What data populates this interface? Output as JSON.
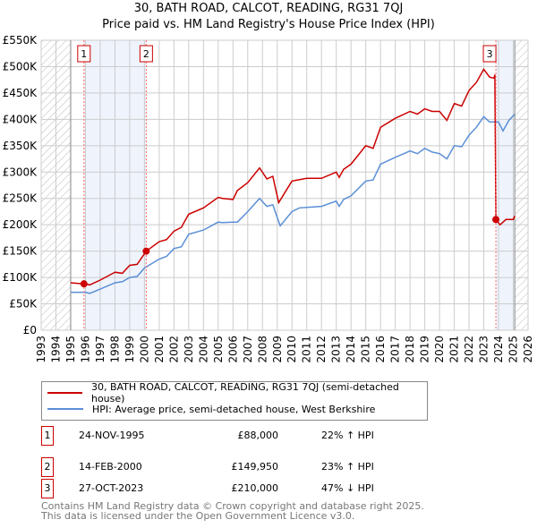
{
  "chart_data": {
    "type": "line",
    "title": "30, BATH ROAD, CALCOT, READING, RG31 7QJ",
    "subtitle": "Price paid vs. HM Land Registry's House Price Index (HPI)",
    "xlim": [
      1993,
      2026
    ],
    "ylim": [
      0,
      550000
    ],
    "x_ticks": [
      "1993",
      "1994",
      "1995",
      "1996",
      "1997",
      "1998",
      "1999",
      "2000",
      "2001",
      "2002",
      "2003",
      "2004",
      "2005",
      "2006",
      "2007",
      "2008",
      "2009",
      "2010",
      "2011",
      "2012",
      "2013",
      "2014",
      "2015",
      "2016",
      "2017",
      "2018",
      "2019",
      "2020",
      "2021",
      "2022",
      "2023",
      "2024",
      "2025",
      "2026"
    ],
    "y_ticks": [
      {
        "v": 0,
        "label": "£0"
      },
      {
        "v": 50000,
        "label": "£50K"
      },
      {
        "v": 100000,
        "label": "£100K"
      },
      {
        "v": 150000,
        "label": "£150K"
      },
      {
        "v": 200000,
        "label": "£200K"
      },
      {
        "v": 250000,
        "label": "£250K"
      },
      {
        "v": 300000,
        "label": "£300K"
      },
      {
        "v": 350000,
        "label": "£350K"
      },
      {
        "v": 400000,
        "label": "£400K"
      },
      {
        "v": 450000,
        "label": "£450K"
      },
      {
        "v": 500000,
        "label": "£500K"
      },
      {
        "v": 550000,
        "label": "£550K"
      }
    ],
    "grid": true,
    "hatched_ranges": [
      [
        1993,
        1995
      ],
      [
        2025.1,
        2026
      ]
    ],
    "shaded_ranges": [
      [
        1995.9,
        2000.12
      ],
      [
        2023.82,
        2025.1
      ]
    ],
    "series": [
      {
        "name": "30, BATH ROAD, CALCOT, READING, RG31 7QJ (semi-detached house)",
        "color": "#cc0000",
        "x": [
          1995,
          1995.9,
          1996.3,
          1997,
          1998,
          1998.5,
          1999,
          1999.5,
          2000.12,
          2001,
          2001.5,
          2002,
          2002.5,
          2003,
          2004,
          2005,
          2005.3,
          2006,
          2006.3,
          2007,
          2007.8,
          2008.3,
          2008.7,
          2009.1,
          2010,
          2011,
          2012,
          2013,
          2013.2,
          2013.5,
          2014,
          2015,
          2015.5,
          2016,
          2017,
          2018,
          2018.5,
          2019,
          2019.5,
          2020,
          2020.5,
          2021,
          2021.5,
          2022,
          2022.5,
          2023,
          2023.4,
          2023.7,
          2023.75,
          2023.82,
          2024.1,
          2024.5,
          2025,
          2025.1
        ],
        "y": [
          90000,
          88000,
          86000,
          95000,
          110000,
          108000,
          123000,
          125000,
          149950,
          168000,
          172000,
          188000,
          195000,
          220000,
          232000,
          252000,
          250000,
          248000,
          265000,
          280000,
          308000,
          287000,
          292000,
          242000,
          283000,
          288000,
          288000,
          300000,
          290000,
          305000,
          315000,
          350000,
          345000,
          385000,
          402000,
          415000,
          410000,
          420000,
          415000,
          415000,
          398000,
          430000,
          425000,
          455000,
          470000,
          495000,
          480000,
          478000,
          485000,
          210000,
          200000,
          210000,
          210000,
          217000
        ]
      },
      {
        "name": "HPI: Average price, semi-detached house, West Berkshire",
        "color": "#5b8fd6",
        "x": [
          1995,
          1996,
          1996.3,
          1997,
          1998,
          1998.5,
          1999,
          1999.5,
          2000,
          2001,
          2001.5,
          2002,
          2002.5,
          2003,
          2004,
          2005,
          2005.3,
          2006,
          2006.3,
          2007,
          2007.8,
          2008.3,
          2008.7,
          2009.2,
          2010,
          2010.5,
          2011,
          2012,
          2013,
          2013.2,
          2013.5,
          2014,
          2015,
          2015.5,
          2016,
          2017,
          2018,
          2018.5,
          2019,
          2019.5,
          2020,
          2020.5,
          2021,
          2021.5,
          2022,
          2022.5,
          2023,
          2023.4,
          2024,
          2024.3,
          2024.7,
          2025.1
        ],
        "y": [
          72000,
          72000,
          70000,
          78000,
          90000,
          92000,
          100000,
          102000,
          118000,
          135000,
          140000,
          155000,
          158000,
          182000,
          190000,
          205000,
          204000,
          205000,
          205000,
          225000,
          250000,
          235000,
          238000,
          198000,
          225000,
          232000,
          233000,
          235000,
          245000,
          235000,
          248000,
          255000,
          283000,
          285000,
          315000,
          328000,
          340000,
          335000,
          345000,
          338000,
          335000,
          325000,
          350000,
          348000,
          370000,
          385000,
          405000,
          395000,
          395000,
          378000,
          398000,
          410000
        ]
      }
    ],
    "sales": [
      {
        "label": "1",
        "x": 1995.9,
        "y": 88000
      },
      {
        "label": "2",
        "x": 2000.12,
        "y": 149950
      },
      {
        "label": "3",
        "x": 2023.82,
        "y": 210000
      }
    ]
  },
  "legend": [
    {
      "label": "30, BATH ROAD, CALCOT, READING, RG31 7QJ (semi-detached house)",
      "color": "#cc0000"
    },
    {
      "label": "HPI: Average price, semi-detached house, West Berkshire",
      "color": "#5b8fd6"
    }
  ],
  "transactions": [
    {
      "num": "1",
      "date": "24-NOV-1995",
      "price": "£88,000",
      "hpi": "22% ↑ HPI"
    },
    {
      "num": "2",
      "date": "14-FEB-2000",
      "price": "£149,950",
      "hpi": "23% ↑ HPI"
    },
    {
      "num": "3",
      "date": "27-OCT-2023",
      "price": "£210,000",
      "hpi": "47% ↓ HPI"
    }
  ],
  "footer": {
    "line1": "Contains HM Land Registry data © Crown copyright and database right 2025.",
    "line2": "This data is licensed under the Open Government Licence v3.0."
  }
}
